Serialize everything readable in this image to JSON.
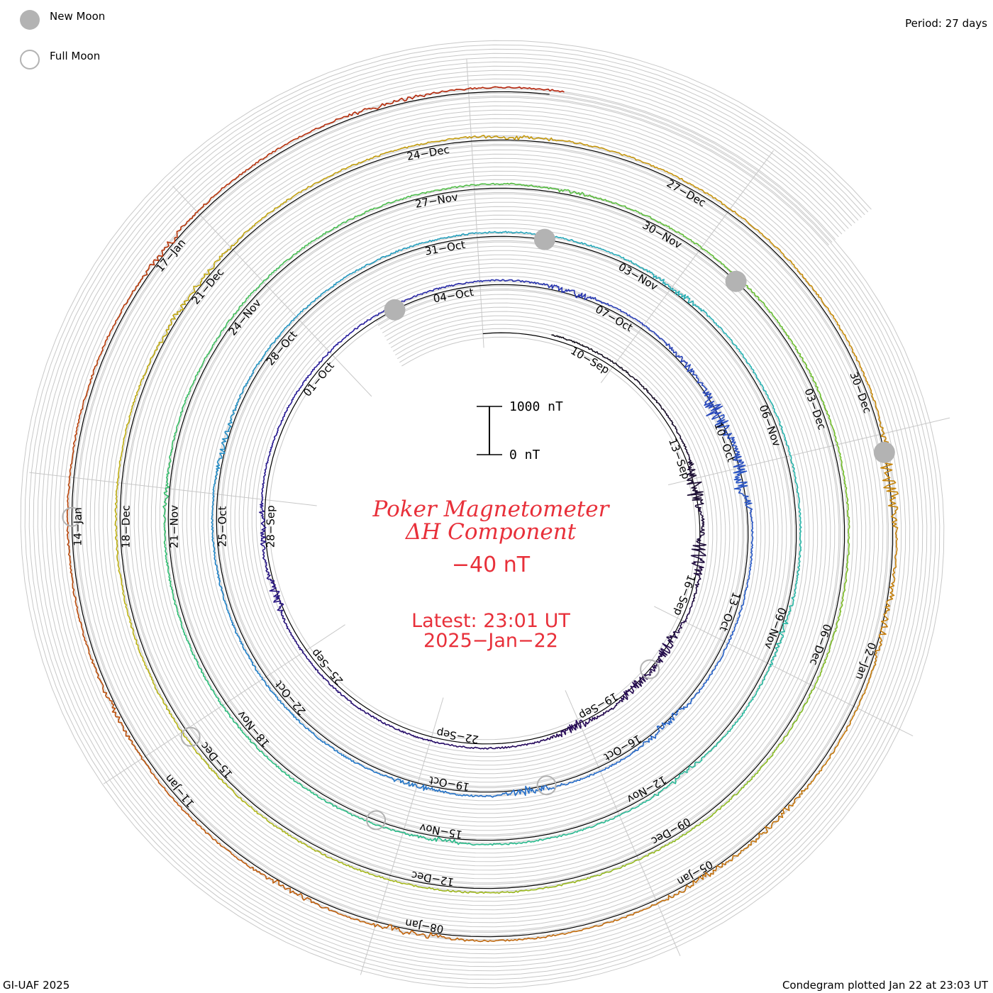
{
  "legend": {
    "new_moon_label": "New Moon",
    "full_moon_label": "Full Moon",
    "new_moon_color": "#b3b3b3",
    "full_moon_color": "#b3b3b3"
  },
  "period_label": "Period: 27 days",
  "footer_left": "GI-UAF 2025",
  "footer_right": "Condegram plotted Jan 22 at 23:03 UT",
  "title_line1": "Poker Magnetometer",
  "title_line2": "ΔH Component",
  "current_value": "−40 nT",
  "latest_line1": "Latest: 23:01 UT",
  "latest_line2": "2025−Jan−22",
  "scale_bar": {
    "top_label": "1000 nT",
    "bottom_label": "0 nT"
  },
  "accent_color": "#e8303a",
  "chart_data": {
    "type": "line",
    "period_days": 27,
    "start_date": "2024-09-08",
    "end_date": "2025-01-22",
    "scale_nT": [
      0,
      1000
    ],
    "grid": true,
    "date_labels": [
      {
        "text": "10−Sep",
        "day": 2
      },
      {
        "text": "13−Sep",
        "day": 5
      },
      {
        "text": "16−Sep",
        "day": 8
      },
      {
        "text": "19−Sep",
        "day": 11
      },
      {
        "text": "22−Sep",
        "day": 14
      },
      {
        "text": "25−Sep",
        "day": 17
      },
      {
        "text": "28−Sep",
        "day": 20
      },
      {
        "text": "01−Oct",
        "day": 23
      },
      {
        "text": "04−Oct",
        "day": 26
      },
      {
        "text": "07−Oct",
        "day": 29
      },
      {
        "text": "10−Oct",
        "day": 32
      },
      {
        "text": "13−Oct",
        "day": 35
      },
      {
        "text": "16−Oct",
        "day": 38
      },
      {
        "text": "19−Oct",
        "day": 41
      },
      {
        "text": "22−Oct",
        "day": 44
      },
      {
        "text": "25−Oct",
        "day": 47
      },
      {
        "text": "28−Oct",
        "day": 50
      },
      {
        "text": "31−Oct",
        "day": 53
      },
      {
        "text": "03−Nov",
        "day": 56
      },
      {
        "text": "06−Nov",
        "day": 59
      },
      {
        "text": "09−Nov",
        "day": 62
      },
      {
        "text": "12−Nov",
        "day": 65
      },
      {
        "text": "15−Nov",
        "day": 68
      },
      {
        "text": "18−Nov",
        "day": 71
      },
      {
        "text": "21−Nov",
        "day": 74
      },
      {
        "text": "24−Nov",
        "day": 77
      },
      {
        "text": "27−Nov",
        "day": 80
      },
      {
        "text": "30−Nov",
        "day": 83
      },
      {
        "text": "03−Dec",
        "day": 86
      },
      {
        "text": "06−Dec",
        "day": 89
      },
      {
        "text": "09−Dec",
        "day": 92
      },
      {
        "text": "12−Dec",
        "day": 95
      },
      {
        "text": "15−Dec",
        "day": 98
      },
      {
        "text": "18−Dec",
        "day": 101
      },
      {
        "text": "21−Dec",
        "day": 104
      },
      {
        "text": "24−Dec",
        "day": 107
      },
      {
        "text": "27−Dec",
        "day": 110
      },
      {
        "text": "30−Dec",
        "day": 113
      },
      {
        "text": "02−Jan",
        "day": 116
      },
      {
        "text": "05−Jan",
        "day": 119
      },
      {
        "text": "08−Jan",
        "day": 122
      },
      {
        "text": "11−Jan",
        "day": 125
      },
      {
        "text": "14−Jan",
        "day": 128
      },
      {
        "text": "17−Jan",
        "day": 131
      }
    ],
    "new_moons_day": [
      25.4,
      55.0,
      84.6,
      114.2
    ],
    "full_moons_day": [
      10.2,
      39.9,
      69.4,
      98.9,
      128.6
    ],
    "series": [
      {
        "cycle": 1,
        "start_day": 0,
        "color": "#151515",
        "disturbance": [
          {
            "day": 6.2,
            "amp": 420
          },
          {
            "day": 7.6,
            "amp": 380
          },
          {
            "day": 9.6,
            "amp": 300
          },
          {
            "day": 10.6,
            "amp": 260
          },
          {
            "day": 12.1,
            "amp": 220
          }
        ]
      },
      {
        "cycle": 2,
        "start_day": 27,
        "color": "#2a1590",
        "disturbance": [
          {
            "day": 19.2,
            "amp": 200
          },
          {
            "day": 20.5,
            "amp": 170
          },
          {
            "day": 32.0,
            "amp": 480
          },
          {
            "day": 33.2,
            "amp": 420
          },
          {
            "day": 28.6,
            "amp": 180
          },
          {
            "day": 31.0,
            "amp": 160
          }
        ]
      },
      {
        "cycle": 3,
        "start_day": 54,
        "color": "#1f78c4",
        "disturbance": [
          {
            "day": 37.7,
            "amp": 220
          },
          {
            "day": 40.2,
            "amp": 190
          },
          {
            "day": 42.0,
            "amp": 120
          },
          {
            "day": 48.8,
            "amp": 140
          },
          {
            "day": 57.1,
            "amp": 150
          }
        ]
      },
      {
        "cycle": 4,
        "start_day": 81,
        "color": "#2fbf7a",
        "disturbance": [
          {
            "day": 62.5,
            "amp": 150
          },
          {
            "day": 65.0,
            "amp": 120
          },
          {
            "day": 68.5,
            "amp": 110
          },
          {
            "day": 75.0,
            "amp": 90
          },
          {
            "day": 82.2,
            "amp": 80
          }
        ]
      },
      {
        "cycle": 5,
        "start_day": 108,
        "color": "#b0a018",
        "disturbance": [
          {
            "day": 104.0,
            "amp": 130
          },
          {
            "day": 108.5,
            "amp": 110
          },
          {
            "day": 104.8,
            "amp": 90
          }
        ]
      },
      {
        "cycle": 5,
        "start_day": 108,
        "color": "#c87d10",
        "disturbance": [
          {
            "day": 114.5,
            "amp": 350
          },
          {
            "day": 116.0,
            "amp": 200
          },
          {
            "day": 118.5,
            "amp": 160
          },
          {
            "day": 119.5,
            "amp": 140
          }
        ]
      },
      {
        "cycle": 6,
        "start_day": 119,
        "color": "#b4250e",
        "disturbance": [
          {
            "day": 122.6,
            "amp": 160
          },
          {
            "day": 124.0,
            "amp": 110
          },
          {
            "day": 126.5,
            "amp": 90
          },
          {
            "day": 131.5,
            "amp": 120
          },
          {
            "day": 134.2,
            "amp": 90
          }
        ]
      }
    ]
  }
}
